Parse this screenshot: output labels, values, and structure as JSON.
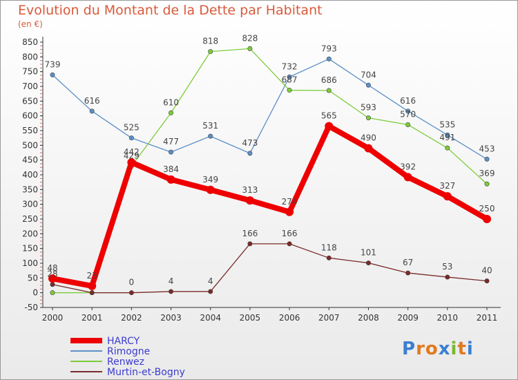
{
  "title": "Evolution du Montant de la Dette par Habitant",
  "subtitle": "(en €)",
  "logo": "Proxiti",
  "chart_data": {
    "type": "line",
    "x": [
      "2000",
      "2001",
      "2002",
      "2003",
      "2004",
      "2005",
      "2006",
      "2007",
      "2008",
      "2009",
      "2010",
      "2011"
    ],
    "ylim": [
      -50,
      850
    ],
    "yticks": [
      -50,
      0,
      50,
      100,
      150,
      200,
      250,
      300,
      350,
      400,
      450,
      500,
      550,
      600,
      650,
      700,
      750,
      800,
      850
    ],
    "grid": false,
    "legend_position": "bottom-left",
    "series": [
      {
        "name": "HARCY",
        "color": "#ee0000",
        "values": [
          48,
          23,
          442,
          384,
          349,
          313,
          274,
          565,
          490,
          392,
          327,
          250
        ],
        "labels": [
          "48",
          "23",
          "442",
          "384",
          "349",
          "313",
          "274",
          "565",
          "490",
          "392",
          "327",
          "250"
        ]
      },
      {
        "name": "Rimogne",
        "color": "#5b8fc7",
        "values": [
          739,
          616,
          525,
          477,
          531,
          473,
          732,
          793,
          704,
          616,
          535,
          453
        ],
        "labels": [
          "739",
          "616",
          "525",
          "477",
          "531",
          "473",
          "732",
          "793",
          "704",
          "616",
          "535",
          "453"
        ]
      },
      {
        "name": "Renwez",
        "color": "#7ccc3a",
        "values": [
          0,
          0,
          429,
          610,
          818,
          828,
          687,
          686,
          593,
          570,
          491,
          369
        ],
        "labels": [
          "",
          "",
          "429",
          "610",
          "818",
          "828",
          "687",
          "686",
          "593",
          "570",
          "491",
          "369"
        ]
      },
      {
        "name": "Murtin-et-Bogny",
        "color": "#7a2a2a",
        "values": [
          28,
          0,
          0,
          4,
          4,
          166,
          166,
          118,
          101,
          67,
          53,
          40
        ],
        "labels": [
          "28",
          "",
          "0",
          "4",
          "4",
          "166",
          "166",
          "118",
          "101",
          "67",
          "53",
          "40"
        ]
      }
    ]
  }
}
